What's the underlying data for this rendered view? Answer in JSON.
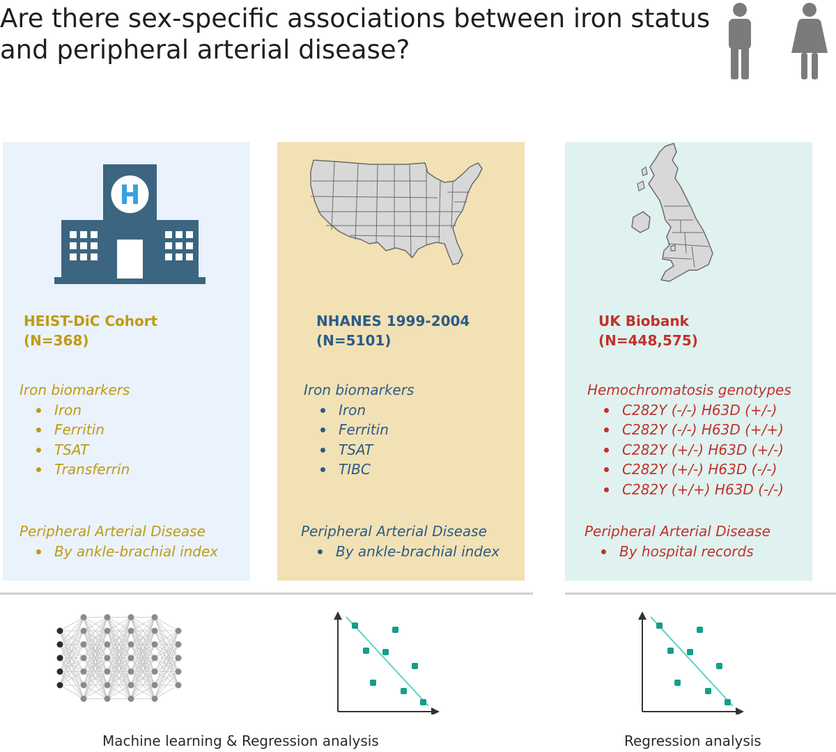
{
  "title": "Are there sex-specific associations between iron status and peripheral arterial disease?",
  "icons": {
    "people": "male-female-people-icon",
    "hospital": "hospital-building-icon",
    "usa_map": "usa-map-icon",
    "uk_map": "uk-map-icon",
    "neural_network": "neural-network-icon",
    "regression_plot": "regression-scatter-icon"
  },
  "colors": {
    "heist": "#bf9a14",
    "nhanes": "#2a5c86",
    "ukb": "#c2312b",
    "panel_heist": "#eaf2fb",
    "panel_nhanes": "#f2e1b4",
    "panel_ukb": "#dff2ef",
    "hospital": "#3b6580",
    "hospital_letter": "#3aa0e0",
    "scatter_points": "#149e8c",
    "regression_line": "#5fcfc6"
  },
  "panels": {
    "heist": {
      "name": "HEIST-DiC Cohort",
      "n": "(N=368)",
      "biomarkers_heading": "Iron biomarkers",
      "biomarkers": [
        "Iron",
        "Ferritin",
        "TSAT",
        "Transferrin"
      ],
      "pad_heading": "Peripheral Arterial Disease",
      "pad_items": [
        "By ankle-brachial index"
      ]
    },
    "nhanes": {
      "name": "NHANES 1999-2004",
      "n": "(N=5101)",
      "biomarkers_heading": "Iron biomarkers",
      "biomarkers": [
        "Iron",
        "Ferritin",
        "TSAT",
        "TIBC"
      ],
      "pad_heading": "Peripheral Arterial Disease",
      "pad_items": [
        "By ankle-brachial index"
      ]
    },
    "ukb": {
      "name": "UK Biobank",
      "n": "(N=448,575)",
      "biomarkers_heading": "Hemochromatosis genotypes",
      "biomarkers": [
        "C282Y (-/-) H63D (+/-)",
        "C282Y (-/-) H63D (+/+)",
        "C282Y (+/-) H63D (+/-)",
        "C282Y (+/-) H63D (-/-)",
        "C282Y (+/+) H63D (-/-)"
      ],
      "pad_heading": "Peripheral Arterial Disease",
      "pad_items": [
        "By hospital records"
      ]
    }
  },
  "methods": {
    "left": "Machine learning & Regression analysis",
    "right": "Regression analysis"
  }
}
